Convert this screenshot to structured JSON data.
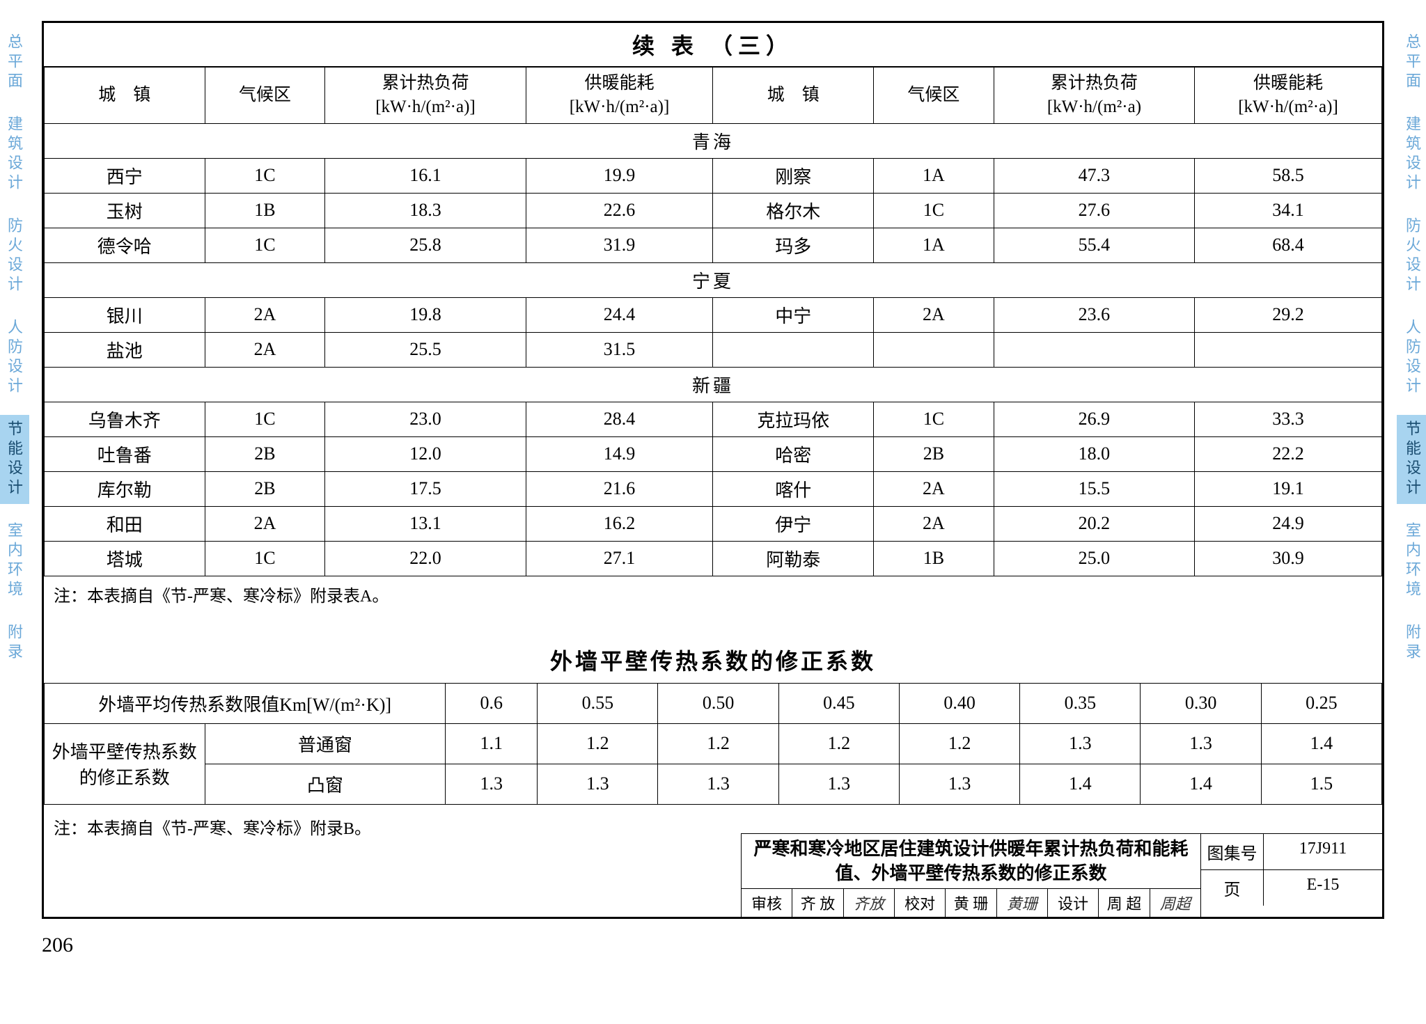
{
  "side_tabs": [
    "总平面",
    "建筑设计",
    "防火设计",
    "人防设计",
    "节能设计",
    "室内环境",
    "附录"
  ],
  "side_active_index": 4,
  "table1": {
    "title": "续 表 （三）",
    "headers": [
      "城　镇",
      "气候区",
      "累计热负荷\n[kW·h/(m²·a)]",
      "供暖能耗\n[kW·h/(m²·a)]",
      "城　镇",
      "气候区",
      "累计热负荷\n[kW·h/(m²·a)",
      "供暖能耗\n[kW·h/(m²·a)]"
    ],
    "sections": [
      {
        "name": "青海",
        "rows": [
          [
            "西宁",
            "1C",
            "16.1",
            "19.9",
            "刚察",
            "1A",
            "47.3",
            "58.5"
          ],
          [
            "玉树",
            "1B",
            "18.3",
            "22.6",
            "格尔木",
            "1C",
            "27.6",
            "34.1"
          ],
          [
            "德令哈",
            "1C",
            "25.8",
            "31.9",
            "玛多",
            "1A",
            "55.4",
            "68.4"
          ]
        ]
      },
      {
        "name": "宁夏",
        "rows": [
          [
            "银川",
            "2A",
            "19.8",
            "24.4",
            "中宁",
            "2A",
            "23.6",
            "29.2"
          ],
          [
            "盐池",
            "2A",
            "25.5",
            "31.5",
            "",
            "",
            "",
            ""
          ]
        ]
      },
      {
        "name": "新疆",
        "rows": [
          [
            "乌鲁木齐",
            "1C",
            "23.0",
            "28.4",
            "克拉玛依",
            "1C",
            "26.9",
            "33.3"
          ],
          [
            "吐鲁番",
            "2B",
            "12.0",
            "14.9",
            "哈密",
            "2B",
            "18.0",
            "22.2"
          ],
          [
            "库尔勒",
            "2B",
            "17.5",
            "21.6",
            "喀什",
            "2A",
            "15.5",
            "19.1"
          ],
          [
            "和田",
            "2A",
            "13.1",
            "16.2",
            "伊宁",
            "2A",
            "20.2",
            "24.9"
          ],
          [
            "塔城",
            "1C",
            "22.0",
            "27.1",
            "阿勒泰",
            "1B",
            "25.0",
            "30.9"
          ]
        ]
      }
    ],
    "note": "注：本表摘自《节-严寒、寒冷标》附录表A。",
    "col_widths_pct": [
      12,
      9,
      15,
      14,
      12,
      9,
      15,
      14
    ]
  },
  "table2": {
    "title": "外墙平壁传热系数的修正系数",
    "header_label": "外墙平均传热系数限值Km[W/(m²·K)]",
    "km_values": [
      "0.6",
      "0.55",
      "0.50",
      "0.45",
      "0.40",
      "0.35",
      "0.30",
      "0.25"
    ],
    "rows_label": "外墙平壁传热系数的修正系数",
    "row_types": [
      "普通窗",
      "凸窗"
    ],
    "values": [
      [
        "1.1",
        "1.2",
        "1.2",
        "1.2",
        "1.2",
        "1.3",
        "1.3",
        "1.4"
      ],
      [
        "1.3",
        "1.3",
        "1.3",
        "1.3",
        "1.3",
        "1.4",
        "1.4",
        "1.5"
      ]
    ],
    "note": "注：本表摘自《节-严寒、寒冷标》附录B。"
  },
  "title_block": {
    "main_title": "严寒和寒冷地区居住建筑设计供暖年累计热负荷和能耗值、外墙平壁传热系数的修正系数",
    "signers": [
      {
        "role": "审核",
        "name": "齐 放",
        "sig": "齐放"
      },
      {
        "role": "校对",
        "name": "黄 珊",
        "sig": "黄珊"
      },
      {
        "role": "设计",
        "name": "周 超",
        "sig": "周超"
      }
    ],
    "meta": [
      {
        "k": "图集号",
        "v": "17J911"
      },
      {
        "k": "页",
        "v": "E-15"
      }
    ]
  },
  "page_number": "206"
}
